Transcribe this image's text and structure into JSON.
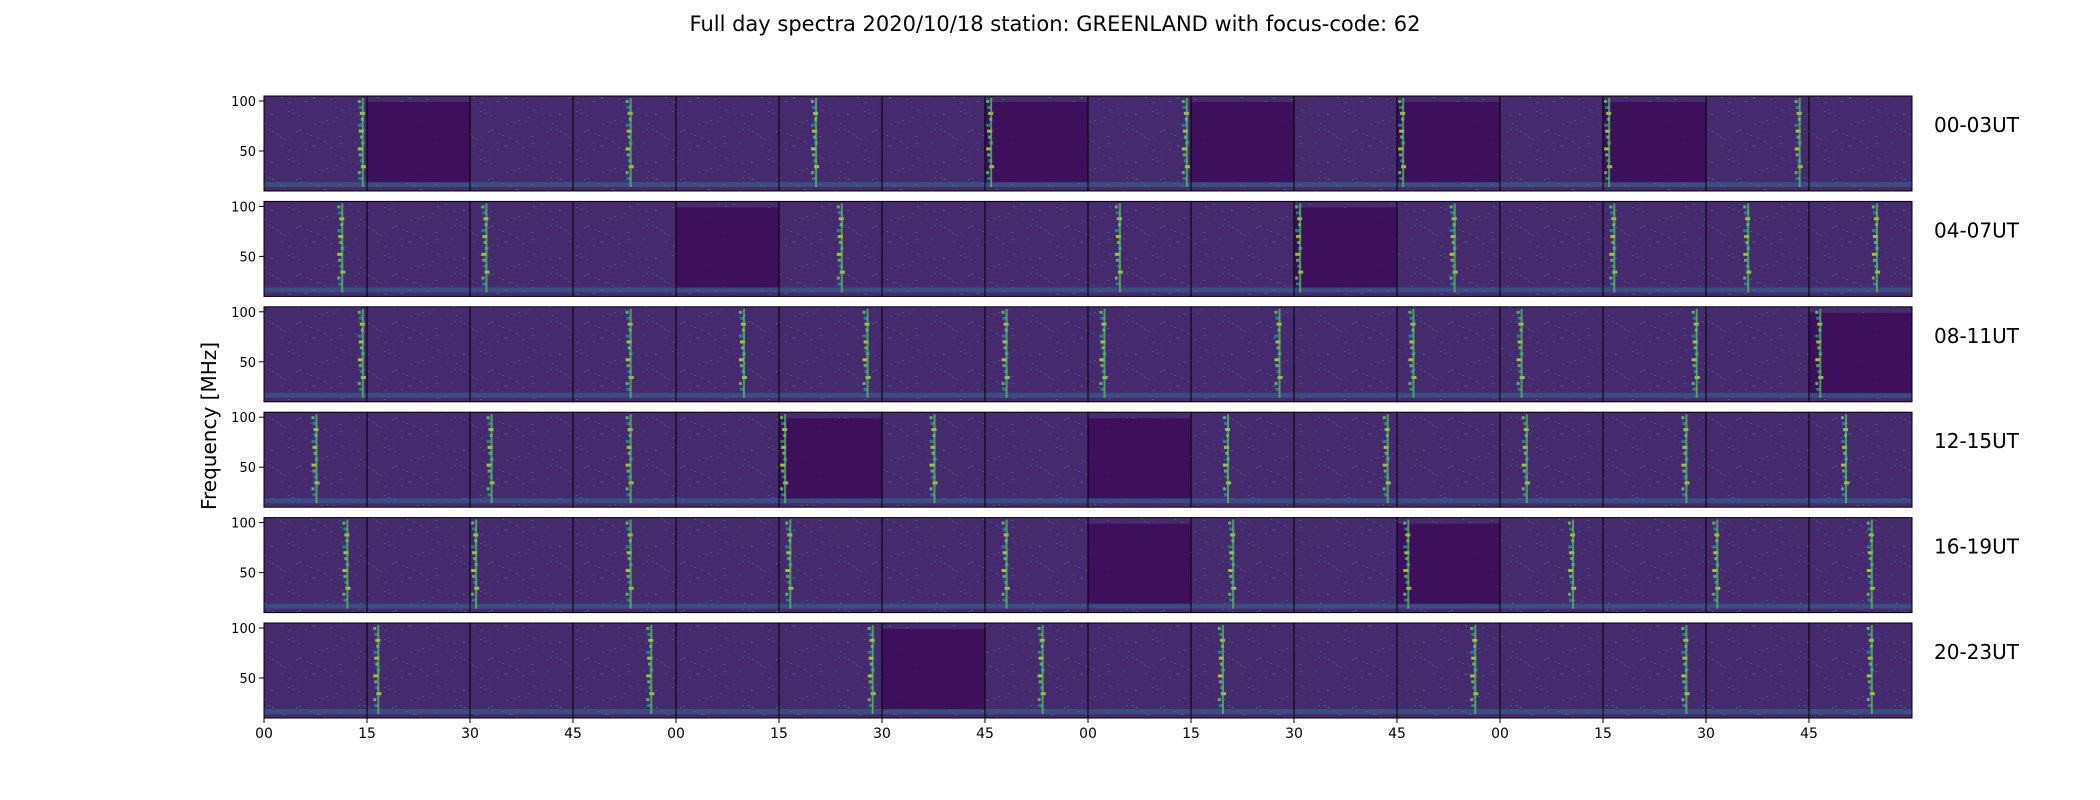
{
  "chart_data": {
    "type": "heatmap",
    "title": "Full day spectra 2020/10/18 station: GREENLAND with focus-code: 62",
    "ylabel": "Frequency [MHz]",
    "xlabel": "",
    "y_ticks": [
      100,
      50
    ],
    "ylim": [
      10,
      105
    ],
    "x_ticks": [
      "00",
      "15",
      "30",
      "45",
      "00",
      "15",
      "30",
      "45",
      "00",
      "15",
      "30",
      "45",
      "00",
      "15",
      "30",
      "45"
    ],
    "rows": [
      {
        "label": "00-03UT",
        "panels": 16
      },
      {
        "label": "04-07UT",
        "panels": 16
      },
      {
        "label": "08-11UT",
        "panels": 16
      },
      {
        "label": "12-15UT",
        "panels": 16
      },
      {
        "label": "16-19UT",
        "panels": 16
      },
      {
        "label": "20-23UT",
        "panels": 16
      }
    ],
    "colormap": [
      "#440154",
      "#3b528b",
      "#21918c",
      "#5ec962",
      "#fde725"
    ]
  }
}
